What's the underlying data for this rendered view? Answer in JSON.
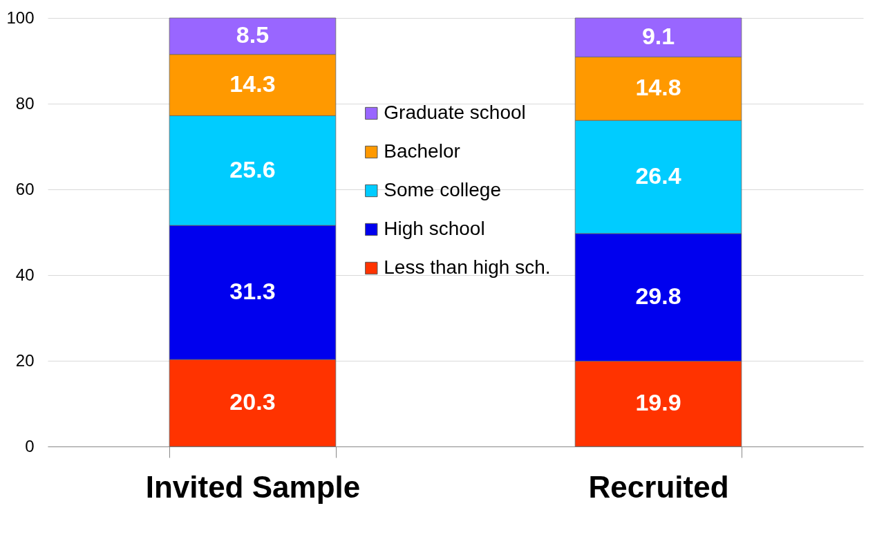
{
  "chart_data": {
    "type": "bar",
    "stacked": true,
    "categories": [
      "Invited Sample",
      "Recruited"
    ],
    "series": [
      {
        "name": "Less than high sch.",
        "color": "#ff3300",
        "values": [
          20.3,
          19.9
        ]
      },
      {
        "name": "High school",
        "color": "#0000ee",
        "values": [
          31.3,
          29.8
        ]
      },
      {
        "name": "Some college",
        "color": "#00ccff",
        "values": [
          25.6,
          26.4
        ]
      },
      {
        "name": "Bachelor",
        "color": "#ff9900",
        "values": [
          14.3,
          14.8
        ]
      },
      {
        "name": "Graduate school",
        "color": "#9966ff",
        "values": [
          8.5,
          9.1
        ]
      }
    ],
    "ylim": [
      0,
      100
    ],
    "yticks": [
      0,
      20,
      40,
      60,
      80,
      100
    ],
    "grid": "y",
    "legend": "top",
    "data_labels": true
  }
}
